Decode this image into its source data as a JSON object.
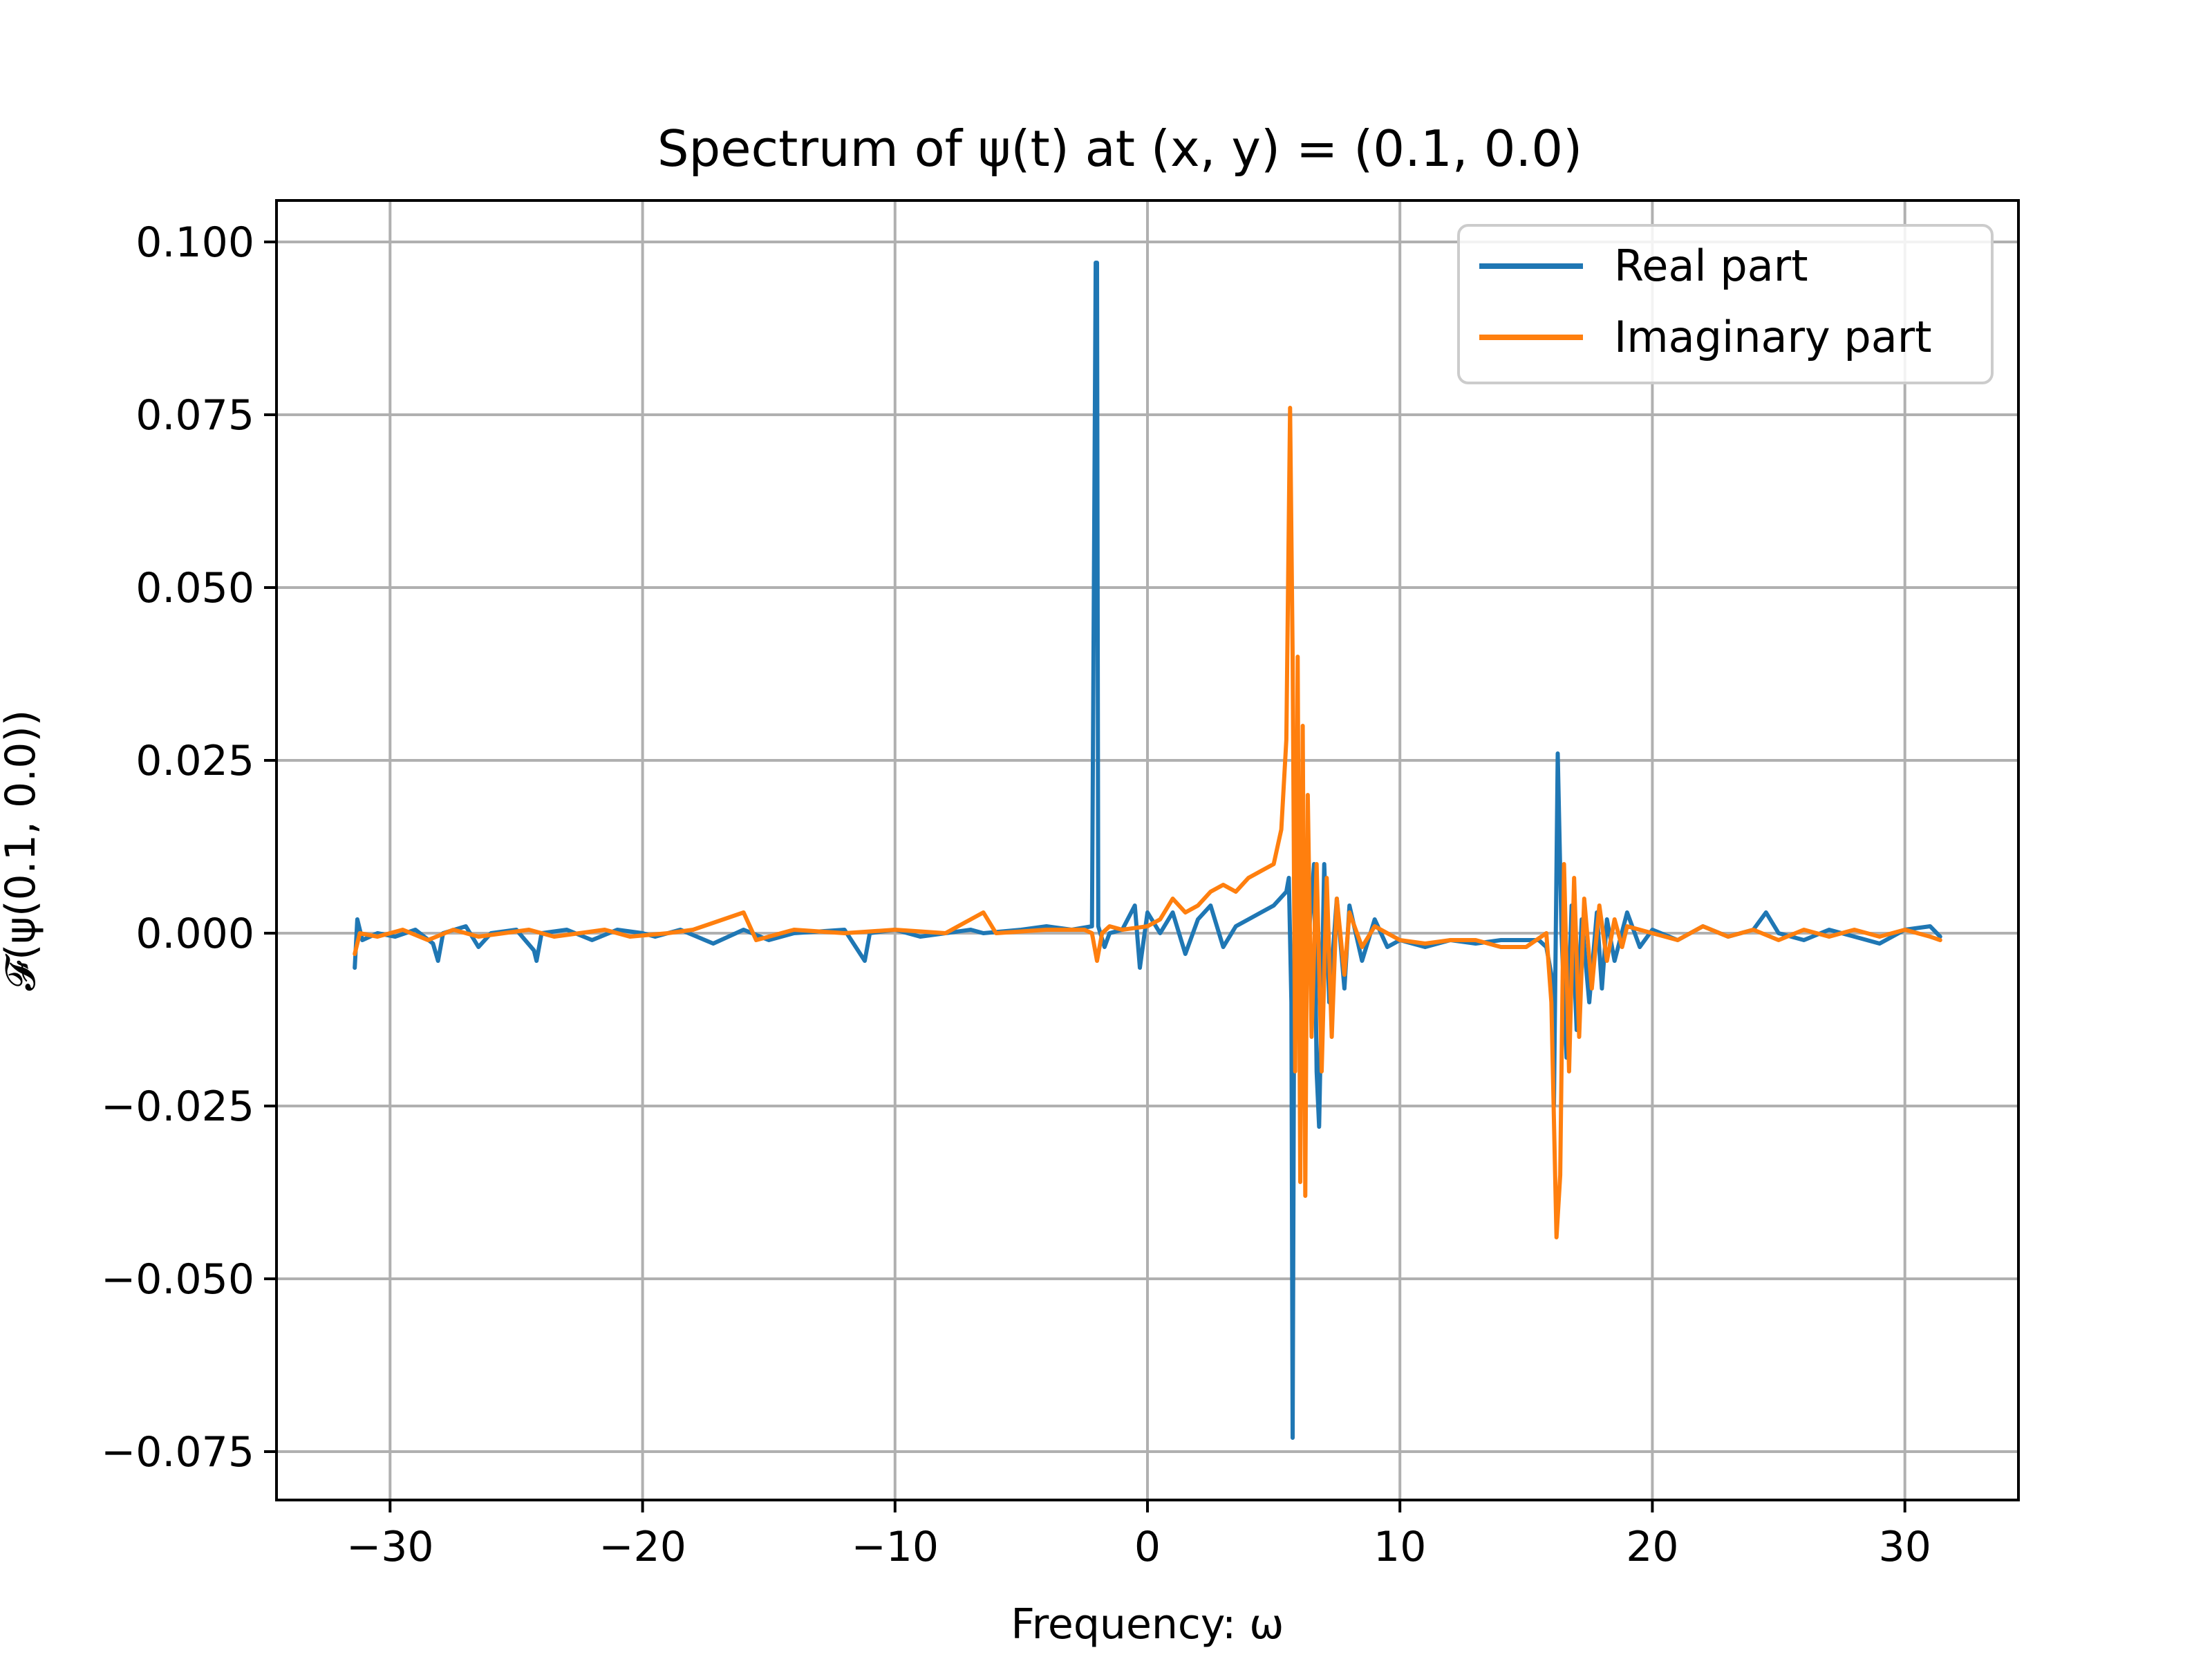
{
  "chart_data": {
    "type": "line",
    "title": "Spectrum of ψ(t) at (x, y) = (0.1, 0.0)",
    "xlabel": "Frequency: ω",
    "ylabel": "𝓕(ψ(0.1, 0.0))",
    "xlim": [
      -34.5,
      34.5
    ],
    "ylim": [
      -0.082,
      0.106
    ],
    "xticks": [
      -30,
      -20,
      -10,
      0,
      10,
      20,
      30
    ],
    "xtick_labels": [
      "−30",
      "−20",
      "−10",
      "0",
      "10",
      "20",
      "30"
    ],
    "yticks": [
      -0.075,
      -0.05,
      -0.025,
      0.0,
      0.025,
      0.05,
      0.075,
      0.1
    ],
    "ytick_labels": [
      "−0.075",
      "−0.050",
      "−0.025",
      "0.000",
      "0.025",
      "0.050",
      "0.075",
      "0.100"
    ],
    "grid": true,
    "legend_position": "top-right",
    "colors": {
      "real": "#1f77b4",
      "imag": "#ff7f0e"
    },
    "series": [
      {
        "name": "Real part",
        "color": "#1f77b4",
        "points": [
          [
            -31.4,
            -0.005
          ],
          [
            -31.3,
            0.002
          ],
          [
            -31.1,
            -0.001
          ],
          [
            -30.5,
            0.0
          ],
          [
            -29.8,
            -0.0005
          ],
          [
            -29.0,
            0.0005
          ],
          [
            -28.3,
            -0.0015
          ],
          [
            -28.1,
            -0.004
          ],
          [
            -27.9,
            0.0
          ],
          [
            -27.0,
            0.001
          ],
          [
            -26.5,
            -0.002
          ],
          [
            -26.0,
            0.0
          ],
          [
            -25.0,
            0.0005
          ],
          [
            -24.3,
            -0.0025
          ],
          [
            -24.2,
            -0.004
          ],
          [
            -24.0,
            0.0
          ],
          [
            -23.0,
            0.0005
          ],
          [
            -22.0,
            -0.001
          ],
          [
            -21.0,
            0.0005
          ],
          [
            -20.0,
            0.0
          ],
          [
            -19.5,
            -0.0005
          ],
          [
            -18.5,
            0.0005
          ],
          [
            -17.2,
            -0.0015
          ],
          [
            -16.0,
            0.0005
          ],
          [
            -15.0,
            -0.001
          ],
          [
            -14.0,
            0.0
          ],
          [
            -12.0,
            0.0005
          ],
          [
            -11.2,
            -0.004
          ],
          [
            -11.0,
            0.0
          ],
          [
            -10.0,
            0.0005
          ],
          [
            -9.0,
            -0.0005
          ],
          [
            -8.0,
            0.0
          ],
          [
            -7.0,
            0.0005
          ],
          [
            -6.5,
            0.0
          ],
          [
            -5.0,
            0.0005
          ],
          [
            -4.0,
            0.001
          ],
          [
            -3.0,
            0.0005
          ],
          [
            -2.2,
            0.001
          ],
          [
            -2.05,
            0.097
          ],
          [
            -2.0,
            0.097
          ],
          [
            -1.95,
            0.001
          ],
          [
            -1.7,
            -0.002
          ],
          [
            -1.5,
            0.0
          ],
          [
            -1.0,
            0.0005
          ],
          [
            -0.5,
            0.004
          ],
          [
            -0.3,
            -0.005
          ],
          [
            0.0,
            0.003
          ],
          [
            0.5,
            0.0
          ],
          [
            1.0,
            0.003
          ],
          [
            1.5,
            -0.003
          ],
          [
            2.0,
            0.002
          ],
          [
            2.5,
            0.004
          ],
          [
            3.0,
            -0.002
          ],
          [
            3.5,
            0.001
          ],
          [
            4.0,
            0.002
          ],
          [
            4.5,
            0.003
          ],
          [
            5.0,
            0.004
          ],
          [
            5.5,
            0.006
          ],
          [
            5.6,
            0.008
          ],
          [
            5.7,
            -0.01
          ],
          [
            5.75,
            -0.073
          ],
          [
            5.8,
            -0.02
          ],
          [
            5.9,
            -0.01
          ],
          [
            6.0,
            0.005
          ],
          [
            6.2,
            -0.015
          ],
          [
            6.4,
            0.0
          ],
          [
            6.6,
            0.01
          ],
          [
            6.7,
            -0.02
          ],
          [
            6.8,
            -0.028
          ],
          [
            7.0,
            0.01
          ],
          [
            7.2,
            -0.01
          ],
          [
            7.5,
            0.005
          ],
          [
            7.8,
            -0.008
          ],
          [
            8.0,
            0.004
          ],
          [
            8.5,
            -0.004
          ],
          [
            9.0,
            0.002
          ],
          [
            9.5,
            -0.002
          ],
          [
            10.0,
            -0.001
          ],
          [
            11.0,
            -0.002
          ],
          [
            12.0,
            -0.001
          ],
          [
            13.0,
            -0.0015
          ],
          [
            14.0,
            -0.001
          ],
          [
            15.0,
            -0.001
          ],
          [
            15.5,
            -0.001
          ],
          [
            15.8,
            -0.002
          ],
          [
            16.0,
            -0.006
          ],
          [
            16.1,
            -0.025
          ],
          [
            16.25,
            0.026
          ],
          [
            16.4,
            0.0
          ],
          [
            16.6,
            -0.018
          ],
          [
            16.8,
            0.004
          ],
          [
            17.0,
            -0.014
          ],
          [
            17.2,
            0.002
          ],
          [
            17.5,
            -0.01
          ],
          [
            17.8,
            0.003
          ],
          [
            18.0,
            -0.008
          ],
          [
            18.2,
            0.002
          ],
          [
            18.5,
            -0.004
          ],
          [
            19.0,
            0.003
          ],
          [
            19.5,
            -0.002
          ],
          [
            20.0,
            0.0005
          ],
          [
            21.0,
            -0.001
          ],
          [
            22.0,
            0.001
          ],
          [
            23.0,
            -0.0005
          ],
          [
            24.0,
            0.0005
          ],
          [
            24.5,
            0.003
          ],
          [
            25.0,
            0.0
          ],
          [
            26.0,
            -0.001
          ],
          [
            27.0,
            0.0005
          ],
          [
            28.0,
            -0.0005
          ],
          [
            29.0,
            -0.0015
          ],
          [
            30.0,
            0.0005
          ],
          [
            31.0,
            0.001
          ],
          [
            31.4,
            -0.0005
          ]
        ]
      },
      {
        "name": "Imaginary part",
        "color": "#ff7f0e",
        "points": [
          [
            -31.4,
            -0.003
          ],
          [
            -31.2,
            0.0
          ],
          [
            -30.5,
            -0.0005
          ],
          [
            -29.5,
            0.0005
          ],
          [
            -28.5,
            -0.001
          ],
          [
            -27.5,
            0.0005
          ],
          [
            -26.5,
            -0.0005
          ],
          [
            -25.5,
            0.0
          ],
          [
            -24.5,
            0.0005
          ],
          [
            -23.5,
            -0.0005
          ],
          [
            -22.5,
            0.0
          ],
          [
            -21.5,
            0.0005
          ],
          [
            -20.5,
            -0.0005
          ],
          [
            -19.0,
            0.0
          ],
          [
            -18.0,
            0.0005
          ],
          [
            -16.0,
            0.003
          ],
          [
            -15.5,
            -0.001
          ],
          [
            -14.0,
            0.0005
          ],
          [
            -12.0,
            0.0
          ],
          [
            -10.0,
            0.0005
          ],
          [
            -8.0,
            0.0
          ],
          [
            -6.5,
            0.003
          ],
          [
            -6.0,
            0.0
          ],
          [
            -4.0,
            0.0005
          ],
          [
            -2.5,
            0.0005
          ],
          [
            -2.2,
            0.0
          ],
          [
            -2.0,
            -0.004
          ],
          [
            -1.8,
            0.0
          ],
          [
            -1.5,
            0.001
          ],
          [
            -1.0,
            0.0005
          ],
          [
            0.0,
            0.001
          ],
          [
            0.5,
            0.002
          ],
          [
            1.0,
            0.005
          ],
          [
            1.5,
            0.003
          ],
          [
            2.0,
            0.004
          ],
          [
            2.5,
            0.006
          ],
          [
            3.0,
            0.007
          ],
          [
            3.5,
            0.006
          ],
          [
            4.0,
            0.008
          ],
          [
            4.5,
            0.009
          ],
          [
            5.0,
            0.01
          ],
          [
            5.3,
            0.015
          ],
          [
            5.5,
            0.028
          ],
          [
            5.65,
            0.076
          ],
          [
            5.75,
            0.04
          ],
          [
            5.85,
            -0.02
          ],
          [
            5.95,
            0.04
          ],
          [
            6.05,
            -0.036
          ],
          [
            6.15,
            0.03
          ],
          [
            6.25,
            -0.038
          ],
          [
            6.35,
            0.02
          ],
          [
            6.5,
            -0.015
          ],
          [
            6.7,
            0.01
          ],
          [
            6.9,
            -0.02
          ],
          [
            7.1,
            0.008
          ],
          [
            7.3,
            -0.015
          ],
          [
            7.5,
            0.005
          ],
          [
            7.8,
            -0.006
          ],
          [
            8.0,
            0.003
          ],
          [
            8.5,
            -0.002
          ],
          [
            9.0,
            0.001
          ],
          [
            10.0,
            -0.001
          ],
          [
            11.0,
            -0.0015
          ],
          [
            12.0,
            -0.001
          ],
          [
            13.0,
            -0.001
          ],
          [
            14.0,
            -0.002
          ],
          [
            15.0,
            -0.002
          ],
          [
            15.8,
            0.0
          ],
          [
            16.0,
            -0.01
          ],
          [
            16.2,
            -0.044
          ],
          [
            16.35,
            -0.035
          ],
          [
            16.5,
            0.01
          ],
          [
            16.7,
            -0.02
          ],
          [
            16.9,
            0.008
          ],
          [
            17.1,
            -0.015
          ],
          [
            17.3,
            0.005
          ],
          [
            17.6,
            -0.008
          ],
          [
            17.9,
            0.004
          ],
          [
            18.2,
            -0.004
          ],
          [
            18.5,
            0.002
          ],
          [
            18.8,
            -0.002
          ],
          [
            19.0,
            0.001
          ],
          [
            20.0,
            0.0
          ],
          [
            21.0,
            -0.001
          ],
          [
            22.0,
            0.001
          ],
          [
            23.0,
            -0.0005
          ],
          [
            24.0,
            0.0005
          ],
          [
            25.0,
            -0.001
          ],
          [
            26.0,
            0.0005
          ],
          [
            27.0,
            -0.0005
          ],
          [
            28.0,
            0.0005
          ],
          [
            29.0,
            -0.0005
          ],
          [
            30.0,
            0.0005
          ],
          [
            31.0,
            -0.0005
          ],
          [
            31.4,
            -0.001
          ]
        ]
      }
    ]
  }
}
